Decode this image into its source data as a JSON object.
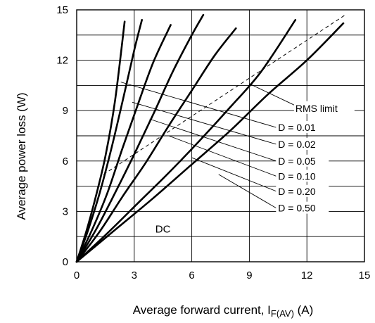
{
  "chart_data": {
    "type": "line",
    "title": "",
    "xlabel": "Average forward current, I",
    "xlabel_sub": "F(AV)",
    "xlabel_unit": " (A)",
    "ylabel": "Average power loss (W)",
    "xlim": [
      0,
      15
    ],
    "ylim": [
      0,
      15
    ],
    "xticks": [
      0,
      3,
      6,
      9,
      12,
      15
    ],
    "yticks": [
      0,
      3,
      6,
      9,
      12,
      15
    ],
    "x_tick_labels": [
      "0",
      "3",
      "6",
      "9",
      "12",
      "15"
    ],
    "y_tick_labels": [
      "0",
      "3",
      "6",
      "9",
      "12",
      "15"
    ],
    "grid": true,
    "series": [
      {
        "label": "D = 0.01",
        "points": [
          [
            0,
            0
          ],
          [
            0.5,
            1.8
          ],
          [
            1.0,
            3.9
          ],
          [
            1.5,
            6.3
          ],
          [
            2.0,
            9.6
          ],
          [
            2.5,
            14.3
          ]
        ]
      },
      {
        "label": "D = 0.02",
        "points": [
          [
            0,
            0
          ],
          [
            0.6,
            1.9
          ],
          [
            1.2,
            4.1
          ],
          [
            1.8,
            6.7
          ],
          [
            2.4,
            9.6
          ],
          [
            3.0,
            12.6
          ],
          [
            3.4,
            14.4
          ]
        ]
      },
      {
        "label": "D = 0.05",
        "points": [
          [
            0,
            0
          ],
          [
            0.8,
            1.9
          ],
          [
            1.6,
            4.1
          ],
          [
            2.4,
            6.8
          ],
          [
            3.2,
            9.4
          ],
          [
            4.0,
            11.9
          ],
          [
            4.9,
            14.1
          ]
        ]
      },
      {
        "label": "D = 0.10",
        "points": [
          [
            0,
            0
          ],
          [
            1.0,
            1.9
          ],
          [
            2.0,
            4.1
          ],
          [
            3.0,
            6.4
          ],
          [
            4.0,
            8.8
          ],
          [
            5.0,
            11.3
          ],
          [
            6.0,
            13.5
          ],
          [
            6.6,
            14.7
          ]
        ]
      },
      {
        "label": "D = 0.20",
        "points": [
          [
            0,
            0
          ],
          [
            1.2,
            1.8
          ],
          [
            2.4,
            3.9
          ],
          [
            3.6,
            5.9
          ],
          [
            4.8,
            8.1
          ],
          [
            6.0,
            10.2
          ],
          [
            7.2,
            12.3
          ],
          [
            8.3,
            13.9
          ]
        ]
      },
      {
        "label": "D = 0.50",
        "points": [
          [
            0,
            0
          ],
          [
            1.6,
            1.7
          ],
          [
            3.2,
            3.5
          ],
          [
            4.8,
            5.3
          ],
          [
            6.4,
            7.2
          ],
          [
            8.0,
            9.2
          ],
          [
            9.6,
            11.3
          ],
          [
            11.4,
            14.4
          ]
        ]
      },
      {
        "label": "DC",
        "points": [
          [
            0,
            0
          ],
          [
            2.0,
            1.9
          ],
          [
            4.0,
            3.8
          ],
          [
            6.0,
            5.8
          ],
          [
            8.0,
            7.8
          ],
          [
            10.0,
            10.0
          ],
          [
            12.0,
            12.0
          ],
          [
            13.9,
            14.2
          ]
        ]
      },
      {
        "label": "RMS limit",
        "points": [
          [
            1.4,
            5.2
          ],
          [
            14.0,
            14.7
          ]
        ]
      }
    ],
    "labels": {
      "duty": [
        "D = 0.01",
        "D = 0.02",
        "D = 0.05",
        "D = 0.10",
        "D = 0.20",
        "D = 0.50"
      ],
      "rms": "RMS limit",
      "dc": "DC"
    }
  }
}
